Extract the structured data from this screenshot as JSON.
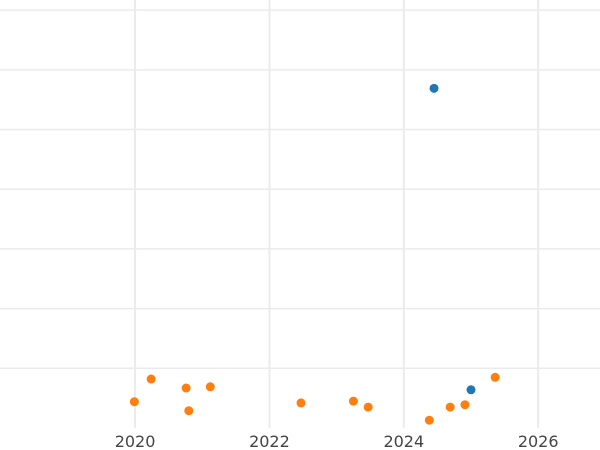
{
  "chart_data": {
    "type": "scatter",
    "title": "",
    "xlabel": "",
    "ylabel": "",
    "xlim": [
      2017.99,
      2026.92
    ],
    "ylim": [
      0,
      7.17
    ],
    "x_ticks": [
      2020,
      2022,
      2024,
      2026
    ],
    "x_tick_labels": [
      "2020",
      "2022",
      "2024",
      "2026"
    ],
    "y_gridlines": [
      1,
      2,
      3,
      4,
      5,
      6,
      7
    ],
    "grid": true,
    "series": [
      {
        "color": "#ff7f0e",
        "points": [
          [
            2019.99,
            0.44
          ],
          [
            2020.24,
            0.82
          ],
          [
            2020.76,
            0.67
          ],
          [
            2020.8,
            0.29
          ],
          [
            2021.12,
            0.69
          ],
          [
            2022.47,
            0.42
          ],
          [
            2023.25,
            0.45
          ],
          [
            2023.47,
            0.35
          ],
          [
            2024.38,
            0.13
          ],
          [
            2024.69,
            0.35
          ],
          [
            2024.91,
            0.39
          ],
          [
            2025.36,
            0.85
          ]
        ]
      },
      {
        "color": "#1f77b4",
        "points": [
          [
            2024.45,
            5.69
          ],
          [
            2025.0,
            0.64
          ]
        ]
      }
    ]
  }
}
